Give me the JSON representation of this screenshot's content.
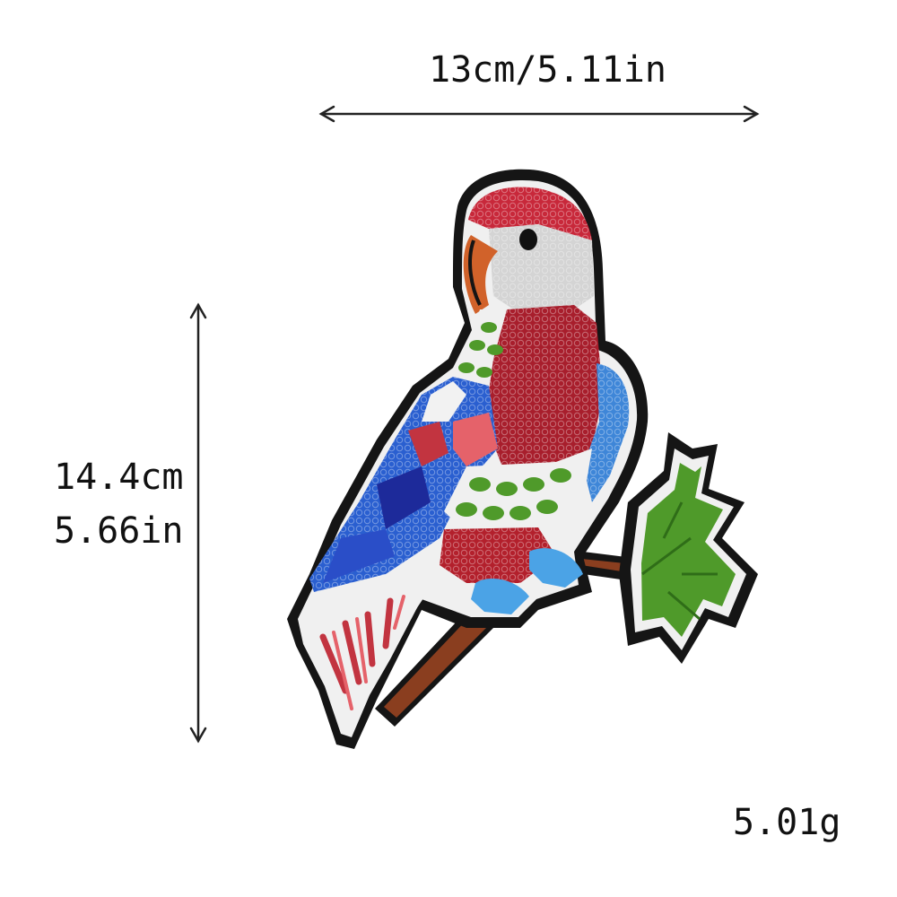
{
  "dimensions": {
    "width_label": "13cm/5.11in",
    "height_label_cm": "14.4cm",
    "height_label_in": "5.66in",
    "weight_label": "5.01g"
  },
  "image": {
    "subject": "sequin parrot patch",
    "colors": {
      "outline": "#151515",
      "red": "#b3202c",
      "pink": "#e5626a",
      "blue": "#2a5fd0",
      "navy": "#1d2a9a",
      "light_blue": "#4ba3e6",
      "green": "#4f9a2a",
      "white": "#f2f2f2",
      "gray": "#cfcfcf",
      "branch": "#8a3e1f"
    }
  }
}
